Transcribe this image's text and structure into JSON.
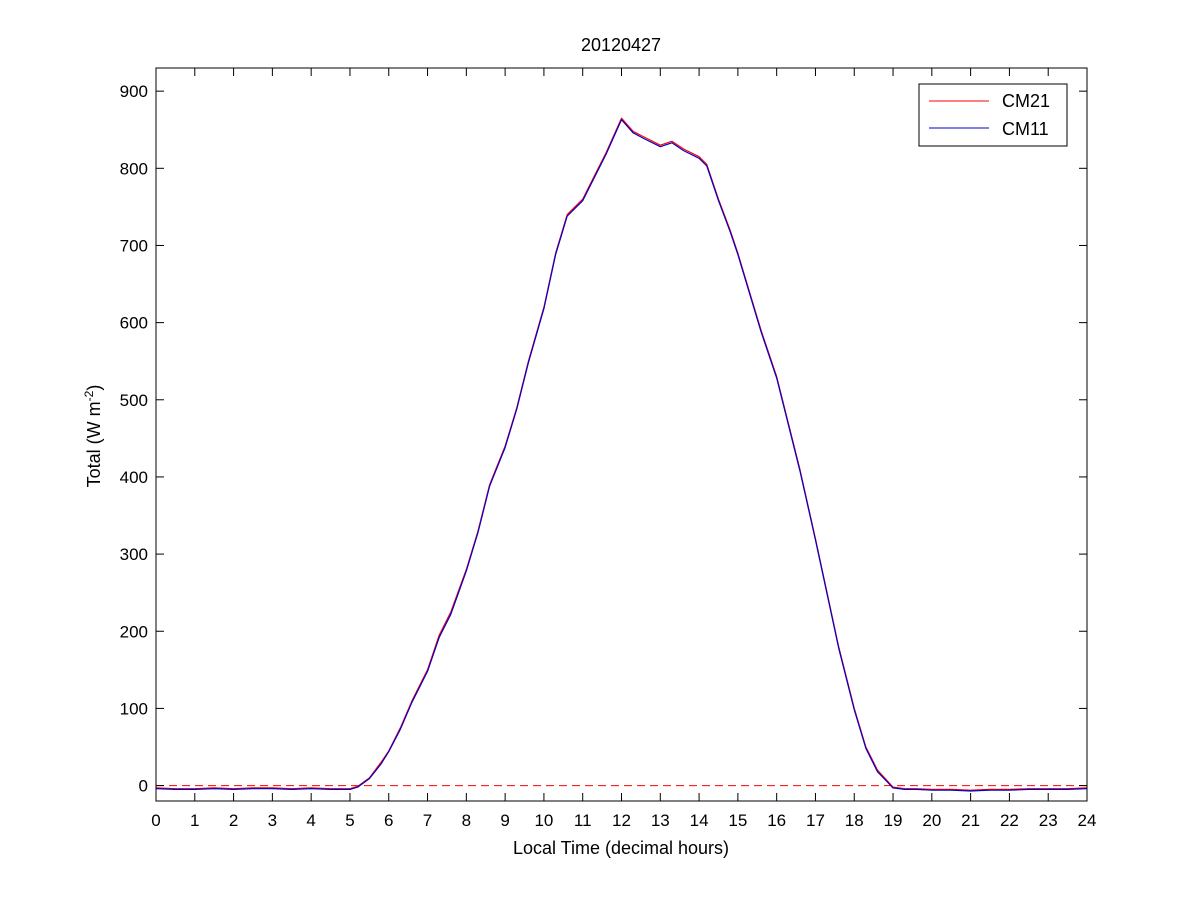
{
  "chart_data": {
    "type": "line",
    "title": "20120427",
    "xlabel": "Local Time (decimal hours)",
    "ylabel_main": "Total (W m",
    "ylabel_sup": "-2",
    "ylabel_close": ")",
    "xlim": [
      0,
      24
    ],
    "ylim": [
      -20,
      930
    ],
    "xticks": [
      0,
      1,
      2,
      3,
      4,
      5,
      6,
      7,
      8,
      9,
      10,
      11,
      12,
      13,
      14,
      15,
      16,
      17,
      18,
      19,
      20,
      21,
      22,
      23,
      24
    ],
    "yticks": [
      0,
      100,
      200,
      300,
      400,
      500,
      600,
      700,
      800,
      900
    ],
    "grid": false,
    "legend_position": "top-right",
    "reference_line": {
      "y": 0,
      "style": "dashed",
      "color": "#ff0000"
    },
    "x": [
      0,
      0.5,
      1,
      1.5,
      2,
      2.5,
      3,
      3.5,
      4,
      4.5,
      5,
      5.2,
      5.5,
      5.8,
      6,
      6.3,
      6.6,
      7,
      7.3,
      7.6,
      8,
      8.3,
      8.6,
      9,
      9.3,
      9.6,
      10,
      10.3,
      10.6,
      11,
      11.3,
      11.6,
      12,
      12.3,
      12.6,
      13,
      13.3,
      13.6,
      14,
      14.2,
      14.5,
      14.8,
      15,
      15.3,
      15.6,
      16,
      16.3,
      16.6,
      17,
      17.3,
      17.6,
      18,
      18.3,
      18.6,
      19,
      19.3,
      19.6,
      20,
      20.5,
      21,
      21.5,
      22,
      22.5,
      23,
      23.5,
      24
    ],
    "series": [
      {
        "name": "CM21",
        "color": "#ff0000",
        "values": [
          -3,
          -4,
          -4,
          -3,
          -4,
          -3,
          -3,
          -4,
          -3,
          -4,
          -4,
          -1,
          10,
          30,
          45,
          75,
          110,
          150,
          195,
          225,
          280,
          330,
          390,
          440,
          490,
          550,
          620,
          690,
          740,
          760,
          790,
          820,
          865,
          848,
          840,
          830,
          835,
          825,
          815,
          805,
          760,
          720,
          690,
          640,
          590,
          530,
          470,
          410,
          320,
          250,
          180,
          100,
          50,
          20,
          -2,
          -4,
          -4,
          -5,
          -5,
          -6,
          -5,
          -5,
          -4,
          -4,
          -4,
          -3
        ]
      },
      {
        "name": "CM11",
        "color": "#0000cc",
        "values": [
          -4,
          -5,
          -5,
          -4,
          -5,
          -4,
          -4,
          -5,
          -4,
          -5,
          -5,
          -2,
          9,
          28,
          44,
          73,
          108,
          148,
          192,
          222,
          278,
          328,
          388,
          438,
          488,
          548,
          618,
          688,
          738,
          758,
          788,
          818,
          863,
          846,
          838,
          828,
          833,
          823,
          813,
          803,
          758,
          718,
          688,
          638,
          588,
          528,
          468,
          408,
          318,
          248,
          178,
          98,
          48,
          18,
          -3,
          -5,
          -5,
          -6,
          -6,
          -7,
          -6,
          -6,
          -5,
          -5,
          -5,
          -4
        ]
      }
    ]
  }
}
